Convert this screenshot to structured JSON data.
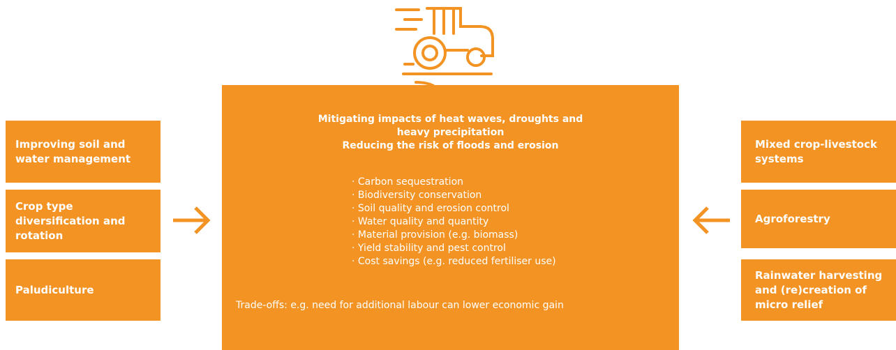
{
  "left_items": [
    "Improving soil and water management",
    "Crop type diversification and rotation",
    "Paludiculture"
  ],
  "right_items": [
    "Mixed crop-livestock systems",
    "Agroforestry",
    "Rainwater harvesting and (re)creation of micro relief"
  ],
  "center": {
    "headings": [
      "Mitigating impacts of heat waves, droughts and heavy precipitation",
      "Reducing the risk of floods and erosion"
    ],
    "benefits": [
      "· Carbon sequestration",
      "· Biodiversity conservation",
      "· Soil quality and erosion control",
      "· Water quality and quantity",
      "· Material provision (e.g. biomass)",
      "· Yield stability and pest control",
      "· Cost savings (e.g. reduced fertiliser use)"
    ],
    "tradeoffs": "Trade-offs: e.g. need for additional labour can lower economic gain"
  }
}
